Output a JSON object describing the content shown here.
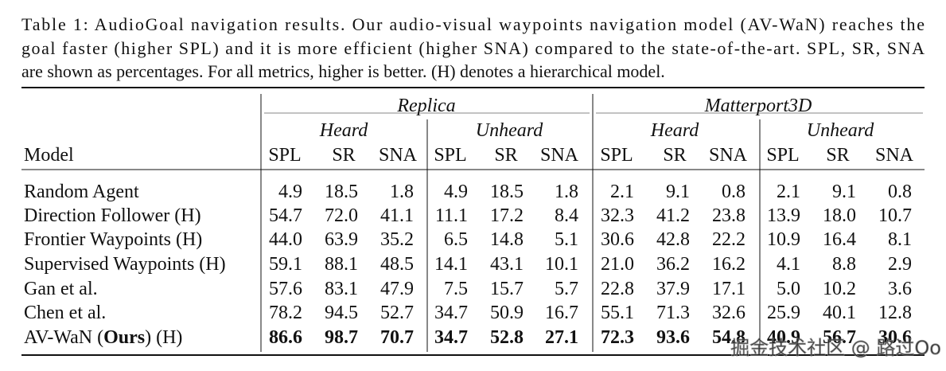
{
  "caption": [
    "Table 1: AudioGoal navigation results. Our audio-visual waypoints navigation model (AV-WaN) reaches the",
    "goal faster (higher SPL) and it is more efficient (higher SNA) compared to the state-of-the-art. SPL, SR, SNA",
    "are shown as percentages. For all metrics, higher is better. (H) denotes a hierarchical model."
  ],
  "table": {
    "datasets": [
      "Replica",
      "Matterport3D"
    ],
    "splits": [
      "Heard",
      "Unheard",
      "Heard",
      "Unheard"
    ],
    "model_header": "Model",
    "metrics": [
      "SPL",
      "SR",
      "SNA",
      "SPL",
      "SR",
      "SNA",
      "SPL",
      "SR",
      "SNA",
      "SPL",
      "SR",
      "SNA"
    ],
    "rows": [
      {
        "model": "Random Agent",
        "values": [
          "4.9",
          "18.5",
          "1.8",
          "4.9",
          "18.5",
          "1.8",
          "2.1",
          "9.1",
          "0.8",
          "2.1",
          "9.1",
          "0.8"
        ]
      },
      {
        "model": "Direction Follower (H)",
        "values": [
          "54.7",
          "72.0",
          "41.1",
          "11.1",
          "17.2",
          "8.4",
          "32.3",
          "41.2",
          "23.8",
          "13.9",
          "18.0",
          "10.7"
        ]
      },
      {
        "model": "Frontier Waypoints (H)",
        "values": [
          "44.0",
          "63.9",
          "35.2",
          "6.5",
          "14.8",
          "5.1",
          "30.6",
          "42.8",
          "22.2",
          "10.9",
          "16.4",
          "8.1"
        ]
      },
      {
        "model": "Supervised Waypoints (H)",
        "values": [
          "59.1",
          "88.1",
          "48.5",
          "14.1",
          "43.1",
          "10.1",
          "21.0",
          "36.2",
          "16.2",
          "4.1",
          "8.8",
          "2.9"
        ]
      },
      {
        "model": "Gan et al.",
        "values": [
          "57.6",
          "83.1",
          "47.9",
          "7.5",
          "15.7",
          "5.7",
          "22.8",
          "37.9",
          "17.1",
          "5.0",
          "10.2",
          "3.6"
        ]
      },
      {
        "model": "Chen et al.",
        "values": [
          "78.2",
          "94.5",
          "52.7",
          "34.7",
          "50.9",
          "16.7",
          "55.1",
          "71.3",
          "32.6",
          "25.9",
          "40.1",
          "12.8"
        ]
      },
      {
        "model": [
          "AV-WaN (",
          "Ours",
          ") (H)"
        ],
        "bold": true,
        "values": [
          "86.6",
          "98.7",
          "70.7",
          "34.7",
          "52.8",
          "27.1",
          "72.3",
          "93.6",
          "54.8",
          "40.9",
          "56.7",
          "30.6"
        ]
      }
    ]
  },
  "watermark": "掘金技术社区 @ 路过Oo"
}
